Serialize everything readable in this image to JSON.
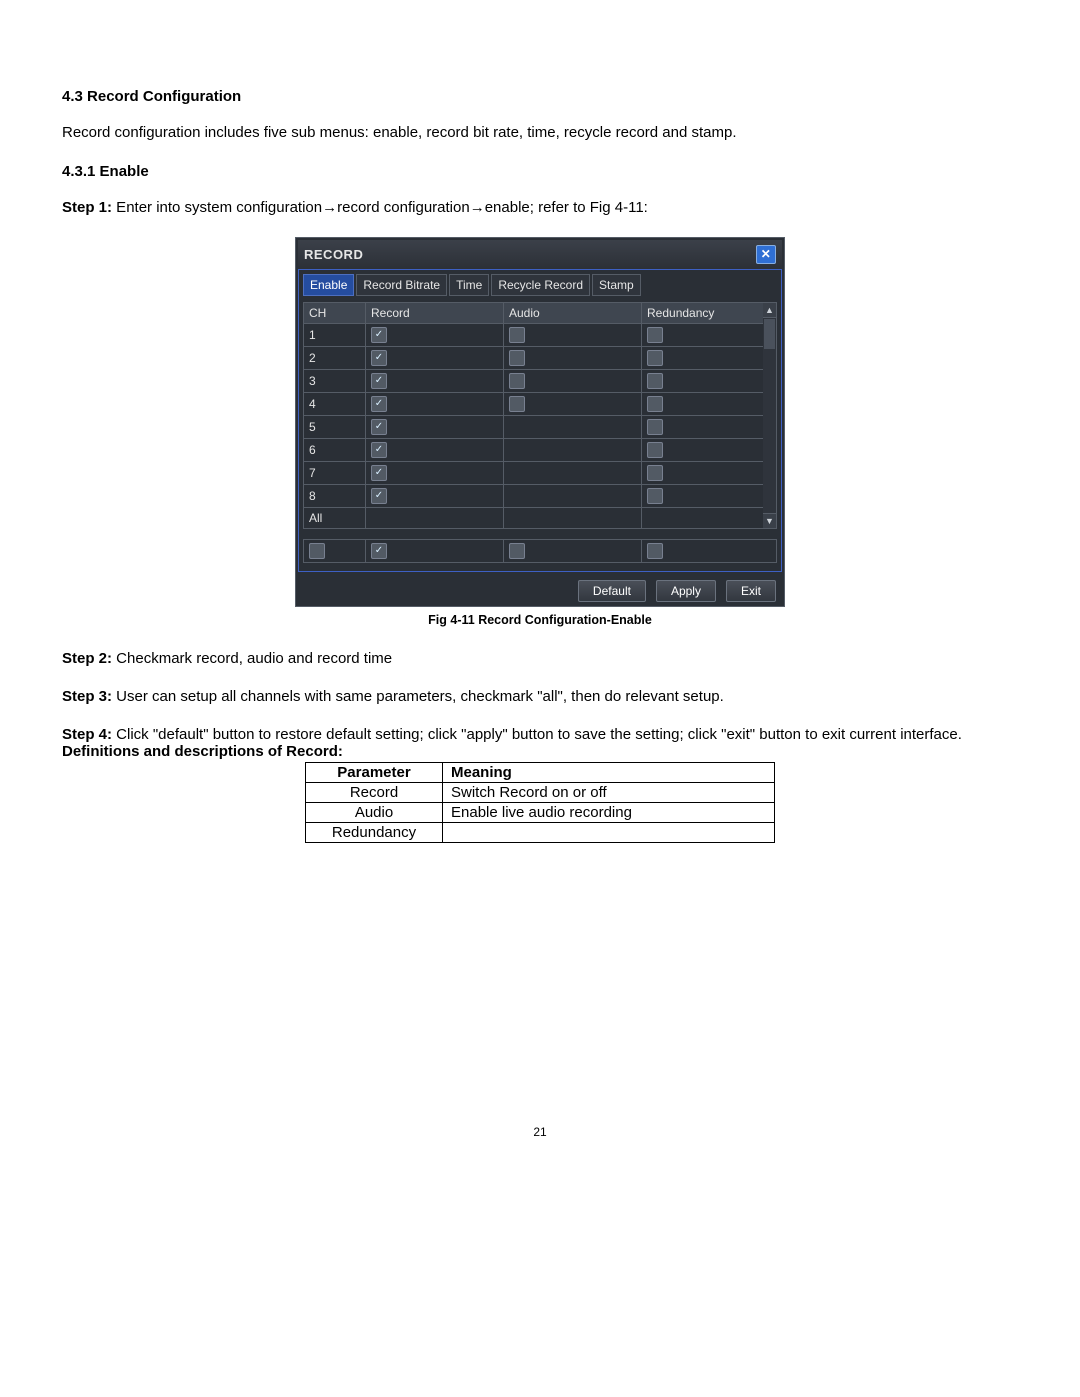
{
  "section_number": "4.3",
  "section_title": "Record Configuration",
  "intro_paragraph": "Record configuration includes five sub menus: enable, record bit rate, time, recycle record and stamp.",
  "subsection_number": "4.3.1",
  "subsection_title": "Enable",
  "step1_label": "Step 1:",
  "step1_text": " Enter into system configuration→record configuration→enable; refer to Fig 4-11:",
  "dialog": {
    "title": "RECORD",
    "tabs": [
      "Enable",
      "Record Bitrate",
      "Time",
      "Recycle Record",
      "Stamp"
    ],
    "active_tab_index": 0,
    "columns": [
      "CH",
      "Record",
      "Audio",
      "Redundancy"
    ],
    "rows": [
      {
        "ch": "1",
        "record": true,
        "audio": false,
        "audio_visible": true,
        "redundancy": false
      },
      {
        "ch": "2",
        "record": true,
        "audio": false,
        "audio_visible": true,
        "redundancy": false
      },
      {
        "ch": "3",
        "record": true,
        "audio": false,
        "audio_visible": true,
        "redundancy": false
      },
      {
        "ch": "4",
        "record": true,
        "audio": false,
        "audio_visible": true,
        "redundancy": false
      },
      {
        "ch": "5",
        "record": true,
        "audio": false,
        "audio_visible": false,
        "redundancy": false
      },
      {
        "ch": "6",
        "record": true,
        "audio": false,
        "audio_visible": false,
        "redundancy": false
      },
      {
        "ch": "7",
        "record": true,
        "audio": false,
        "audio_visible": false,
        "redundancy": false
      },
      {
        "ch": "8",
        "record": true,
        "audio": false,
        "audio_visible": false,
        "redundancy": false
      }
    ],
    "all_label": "All",
    "summary": {
      "record": true,
      "audio": false,
      "redundancy": false
    },
    "buttons": {
      "default": "Default",
      "apply": "Apply",
      "exit": "Exit"
    }
  },
  "figure_caption": "Fig 4-11 Record Configuration-Enable",
  "step2_label": "Step 2:",
  "step2_text": " Checkmark record, audio and record time",
  "step3_label": "Step 3:",
  "step3_text": " User can setup all channels with same parameters, checkmark \"all\", then do relevant setup.",
  "step4_label": "Step 4:",
  "step4_text": " Click \"default\" button to restore default setting; click \"apply\" button to save the setting; click \"exit\" button to exit current interface.",
  "definitions_title": "Definitions and descriptions of Record:",
  "def_table": {
    "headers": [
      "Parameter",
      "Meaning"
    ],
    "rows": [
      {
        "param": "Record",
        "meaning": "Switch Record on or off"
      },
      {
        "param": "Audio",
        "meaning": "Enable live audio recording"
      },
      {
        "param": "Redundancy",
        "meaning": ""
      }
    ]
  },
  "page_number": "21",
  "style": {
    "body_font_size_pt": 11,
    "caption_font_size_pt": 9,
    "dvr_bg": "#2a2f36",
    "dvr_border": "#555c66",
    "dvr_accent_border": "#3d60c4",
    "active_tab_bg": "#254da0",
    "close_btn_bg": "#2f6fd4",
    "checkbox_bg": "#525a64",
    "checkbox_border": "#788090",
    "button_gradient_top": "#4a4f58",
    "button_gradient_bottom": "#32373f",
    "text_color": "#000000",
    "dvr_text_color": "#e6e6e6"
  }
}
